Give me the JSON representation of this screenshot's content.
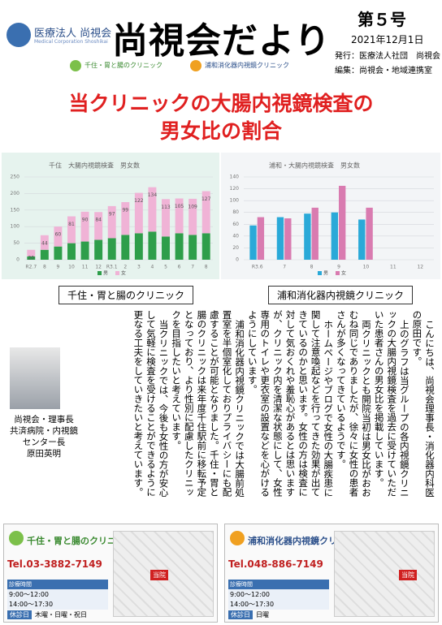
{
  "header": {
    "org_logo": "医療法人 尚視会",
    "org_logo_en": "Medical Corporation Shoshikai",
    "title": "尚視会だより",
    "issue": "第５号",
    "date": "2021年12月1日",
    "publisher": "発行：医療法人社団　尚視会",
    "editor": "編集：尚視会・地域連携室",
    "clinics": [
      "千住・胃と腸のクリニック",
      "浦和消化器内視鏡クリニック"
    ]
  },
  "headline": [
    "当クリニックの大腸内視鏡検査の",
    "男女比の割合"
  ],
  "charts": [
    {
      "type": "bar",
      "stacked": true,
      "title": "千住　大腸内視鏡検査　男女数",
      "categories": [
        "R2.7",
        "8",
        "9",
        "10",
        "11",
        "12",
        "R3.1",
        "2",
        "3",
        "4",
        "5",
        "6",
        "7",
        "8"
      ],
      "series": [
        {
          "name": "男",
          "color": "#2e9e4a",
          "values": [
            10,
            30,
            40,
            50,
            55,
            60,
            65,
            75,
            80,
            85,
            70,
            80,
            75,
            80
          ]
        },
        {
          "name": "女",
          "color": "#f0b3d6",
          "values": [
            20,
            44,
            60,
            81,
            90,
            84,
            97,
            99,
            122,
            134,
            113,
            105,
            109,
            127
          ]
        }
      ],
      "ylim": [
        0,
        250
      ],
      "yticks": [
        0,
        50,
        100,
        150,
        200,
        250
      ],
      "grid": true
    },
    {
      "type": "bar",
      "stacked": false,
      "title": "浦和・大腸内視鏡検査　男女数",
      "categories": [
        "R3.6",
        "7",
        "8",
        "9",
        "10",
        "11",
        "12"
      ],
      "series": [
        {
          "name": "男",
          "color": "#2aa9d8",
          "values": [
            58,
            72,
            78,
            80,
            68,
            null,
            null
          ]
        },
        {
          "name": "女",
          "color": "#d97bb0",
          "values": [
            72,
            70,
            88,
            125,
            88,
            null,
            null
          ]
        }
      ],
      "ylim": [
        0,
        140
      ],
      "yticks": [
        0,
        20,
        40,
        60,
        80,
        100,
        120,
        140
      ],
      "grid": true
    }
  ],
  "chart_captions": [
    "千住・胃と腸のクリニック",
    "浦和消化器内視鏡クリニック"
  ],
  "article": {
    "paragraphs": [
      "こんにちは、尚視会理事長・消化器内科医の原田です。",
      "上のグラフは当グループの各内視鏡クリニックの大腸内視鏡検査を過去に受けていただいた患者さんの男女比を掲載しています。",
      "両クリニックとも開院当初は男女比がおおむね同じでありましたが、徐々に女性の患者さんが多くなってきているようです。",
      "ホームページやブログで女性の大腸疾患に関して注意喚起などを行ってきた効果が出てきているのかと思います。女性の方は検査に対して気おくれや羞恥心があるとは思いますが、クリニック内を清潔な状態にして、女性専用のトイレや更衣室の設置などを心がけるようにしています。",
      "浦和消化器内視鏡クリニックでは大腸前処置室を半個室化しておりプライバシーにも配慮することが可能となりました。千住・胃と腸のクリニックは来年度千住駅前に移転予定となっており、より性別に配慮したクリニックを目指したいと考えています。",
      "当クリニックでは、今後も女性の方が安心して気軽に検査を受けることができるように更なる工夫をしていきたいと考えています。"
    ]
  },
  "author": {
    "lines": [
      "尚視会・理事長",
      "共済病院・内視鏡",
      "センター長",
      "原田英明"
    ]
  },
  "footer": {
    "clinics": [
      {
        "name": "千住・胃と腸のクリニック",
        "tel": "Tel.03-3882-7149",
        "hours_label": "診療時間",
        "hours": [
          "9:00〜12:00",
          "14:00〜17:30"
        ],
        "closed_label": "休診日",
        "closed": "木曜・日曜・祝日",
        "map_label": "当院"
      },
      {
        "name": "浦和消化器内視鏡クリニック",
        "tel": "Tel.048-886-7149",
        "hours_label": "診療時間",
        "hours": [
          "9:00〜12:00",
          "14:00〜17:30"
        ],
        "closed_label": "休診日",
        "closed": "日曜",
        "map_label": "当院"
      }
    ]
  }
}
